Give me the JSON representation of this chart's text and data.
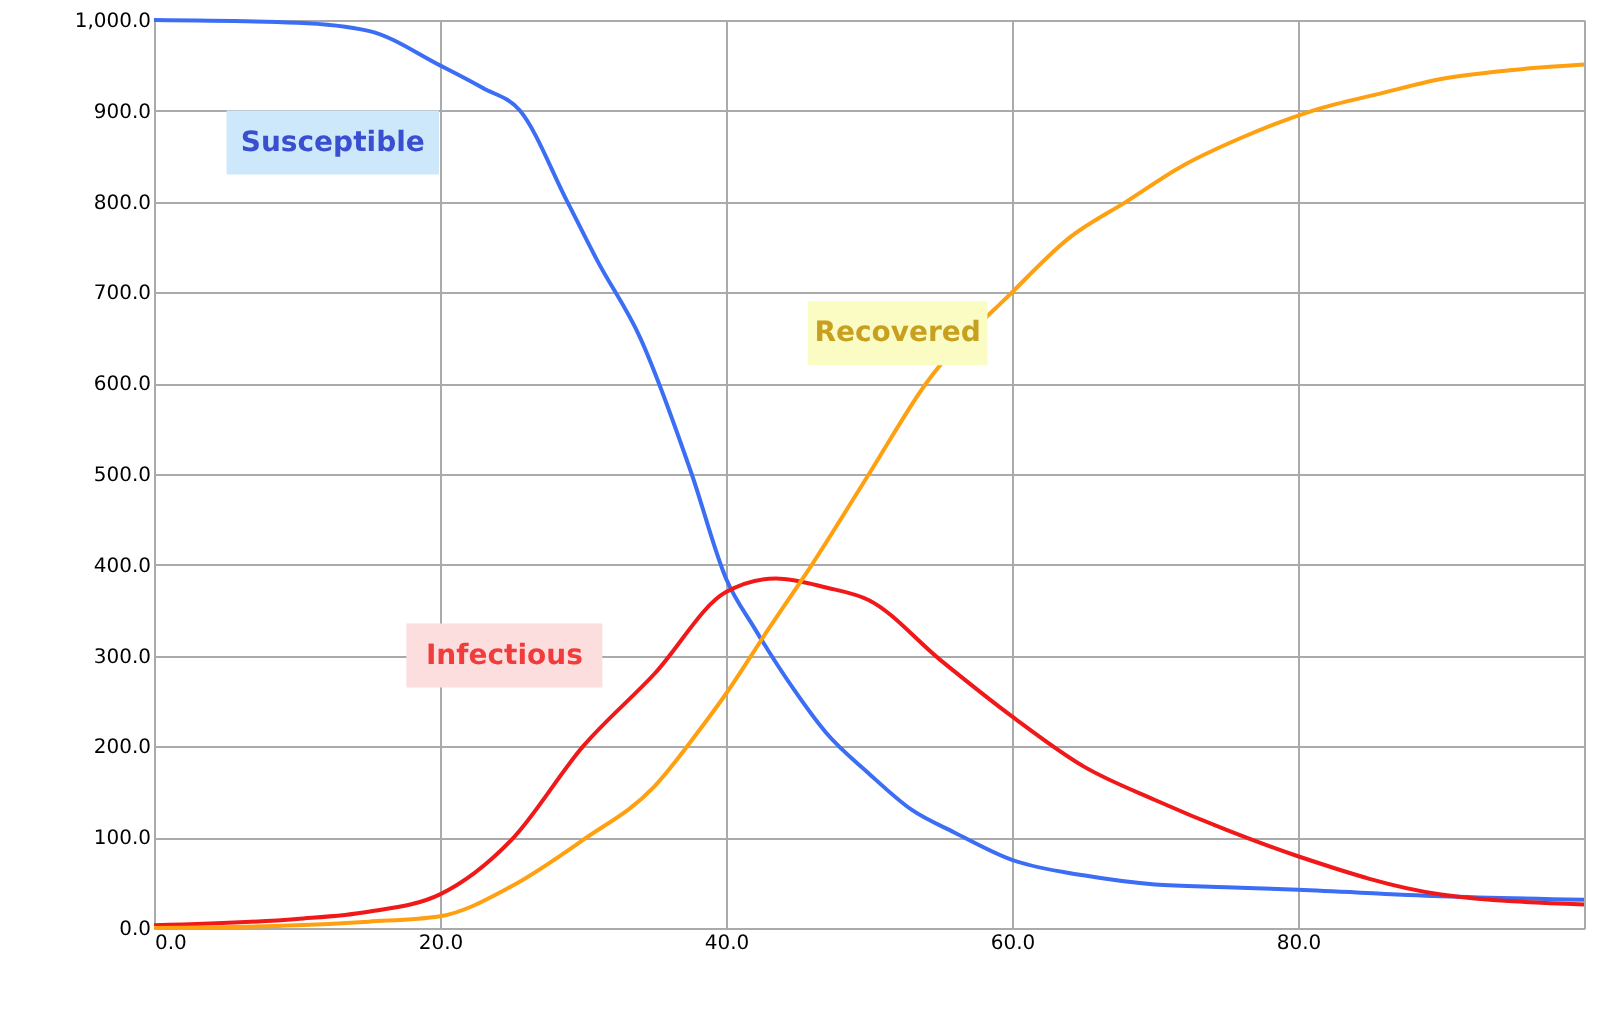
{
  "chart_data": {
    "type": "line",
    "grid": true,
    "legend": false,
    "marker": "none",
    "line_style": "solid",
    "xlim": [
      0,
      100
    ],
    "xticks": [
      {
        "value": 0,
        "label": "0.0"
      },
      {
        "value": 20,
        "label": "20.0"
      },
      {
        "value": 40,
        "label": "40.0"
      },
      {
        "value": 60,
        "label": "60.0"
      },
      {
        "value": 80,
        "label": "80.0"
      },
      {
        "value": 100,
        "label": null
      }
    ],
    "ylim": [
      0,
      1000
    ],
    "yticks": [
      {
        "value": 0,
        "label": "0.0"
      },
      {
        "value": 100,
        "label": "100.0"
      },
      {
        "value": 200,
        "label": "200.0"
      },
      {
        "value": 300,
        "label": "300.0"
      },
      {
        "value": 400,
        "label": "400.0"
      },
      {
        "value": 500,
        "label": "500.0"
      },
      {
        "value": 600,
        "label": "600.0"
      },
      {
        "value": 700,
        "label": "700.0"
      },
      {
        "value": 800,
        "label": "800.0"
      },
      {
        "value": 900,
        "label": "900.0"
      },
      {
        "value": 1000,
        "label": "1,000.0"
      }
    ],
    "series": [
      {
        "name": "Susceptible",
        "color": "#3b6ef5",
        "x": [
          0,
          10,
          15,
          20,
          23,
          25.6,
          28.9,
          31,
          34,
          37.6,
          40,
          42,
          44.6,
          47,
          50,
          53,
          56,
          60,
          65,
          70,
          75,
          80,
          90,
          100
        ],
        "values": [
          1000,
          997,
          988,
          950,
          925,
          900,
          800,
          735,
          650,
          500,
          385,
          330,
          266,
          215,
          170,
          130,
          105,
          75,
          58,
          48,
          45,
          42,
          35,
          31
        ]
      },
      {
        "name": "Infectious",
        "color": "#f01818",
        "x": [
          0,
          10,
          15,
          20,
          25,
          30,
          35,
          40,
          43.5,
          47,
          50,
          55,
          60,
          65,
          70,
          75,
          80,
          90,
          100
        ],
        "values": [
          3,
          10,
          18,
          37,
          97,
          200,
          280,
          370,
          385,
          375,
          361,
          295,
          233,
          178,
          141,
          108,
          79,
          37,
          26
        ]
      },
      {
        "name": "Recovered",
        "color": "#ffa010",
        "x": [
          0,
          10,
          15,
          20,
          25,
          30,
          35,
          38,
          40,
          43,
          46,
          50,
          54,
          60,
          64,
          68,
          72,
          76,
          81,
          86,
          90,
          95,
          100
        ],
        "values": [
          0,
          3,
          7,
          13,
          46,
          97,
          156,
          215,
          258,
          330,
          400,
          500,
          600,
          700,
          760,
          800,
          840,
          870,
          900,
          920,
          935,
          945,
          951
        ]
      }
    ]
  }
}
